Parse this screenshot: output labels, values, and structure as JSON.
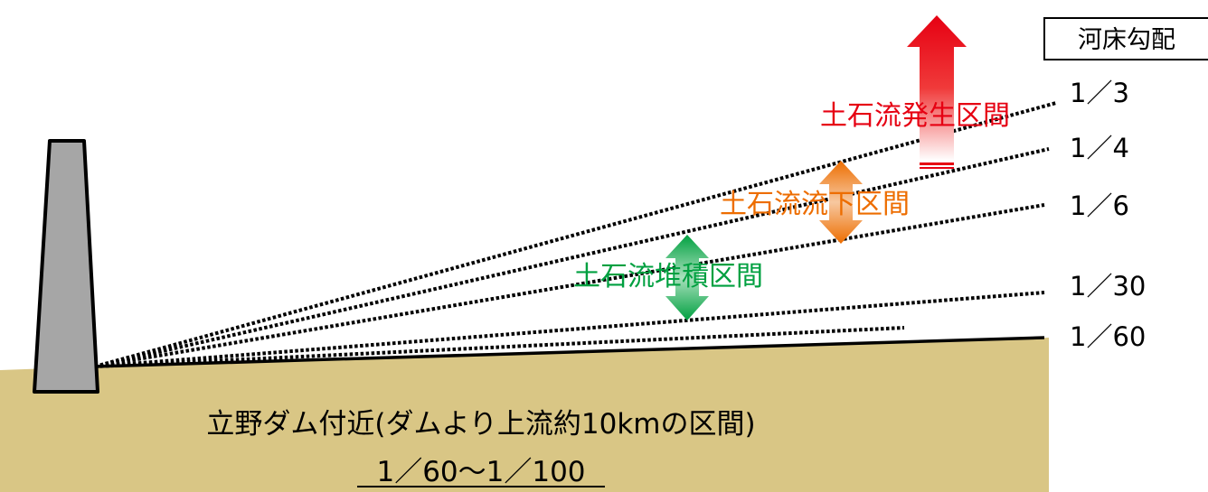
{
  "title_box": {
    "label": "河床勾配"
  },
  "gradients": [
    {
      "label": "1／3"
    },
    {
      "label": "1／4"
    },
    {
      "label": "1／6"
    },
    {
      "label": "1／30"
    },
    {
      "label": "1／60"
    }
  ],
  "zones": {
    "generation": {
      "label": "土石流発生区間",
      "color": "#e60012"
    },
    "flow": {
      "label": "土石流流下区間",
      "color": "#ed6d00"
    },
    "deposition": {
      "label": "土石流堆積区間",
      "color": "#00a040"
    }
  },
  "ground": {
    "location": "立野ダム付近(ダムより上流約10kmの区間)",
    "gradient": "1／60～1／100",
    "color": "#d9c685"
  },
  "dam": {
    "color": "#a6a6a6"
  }
}
